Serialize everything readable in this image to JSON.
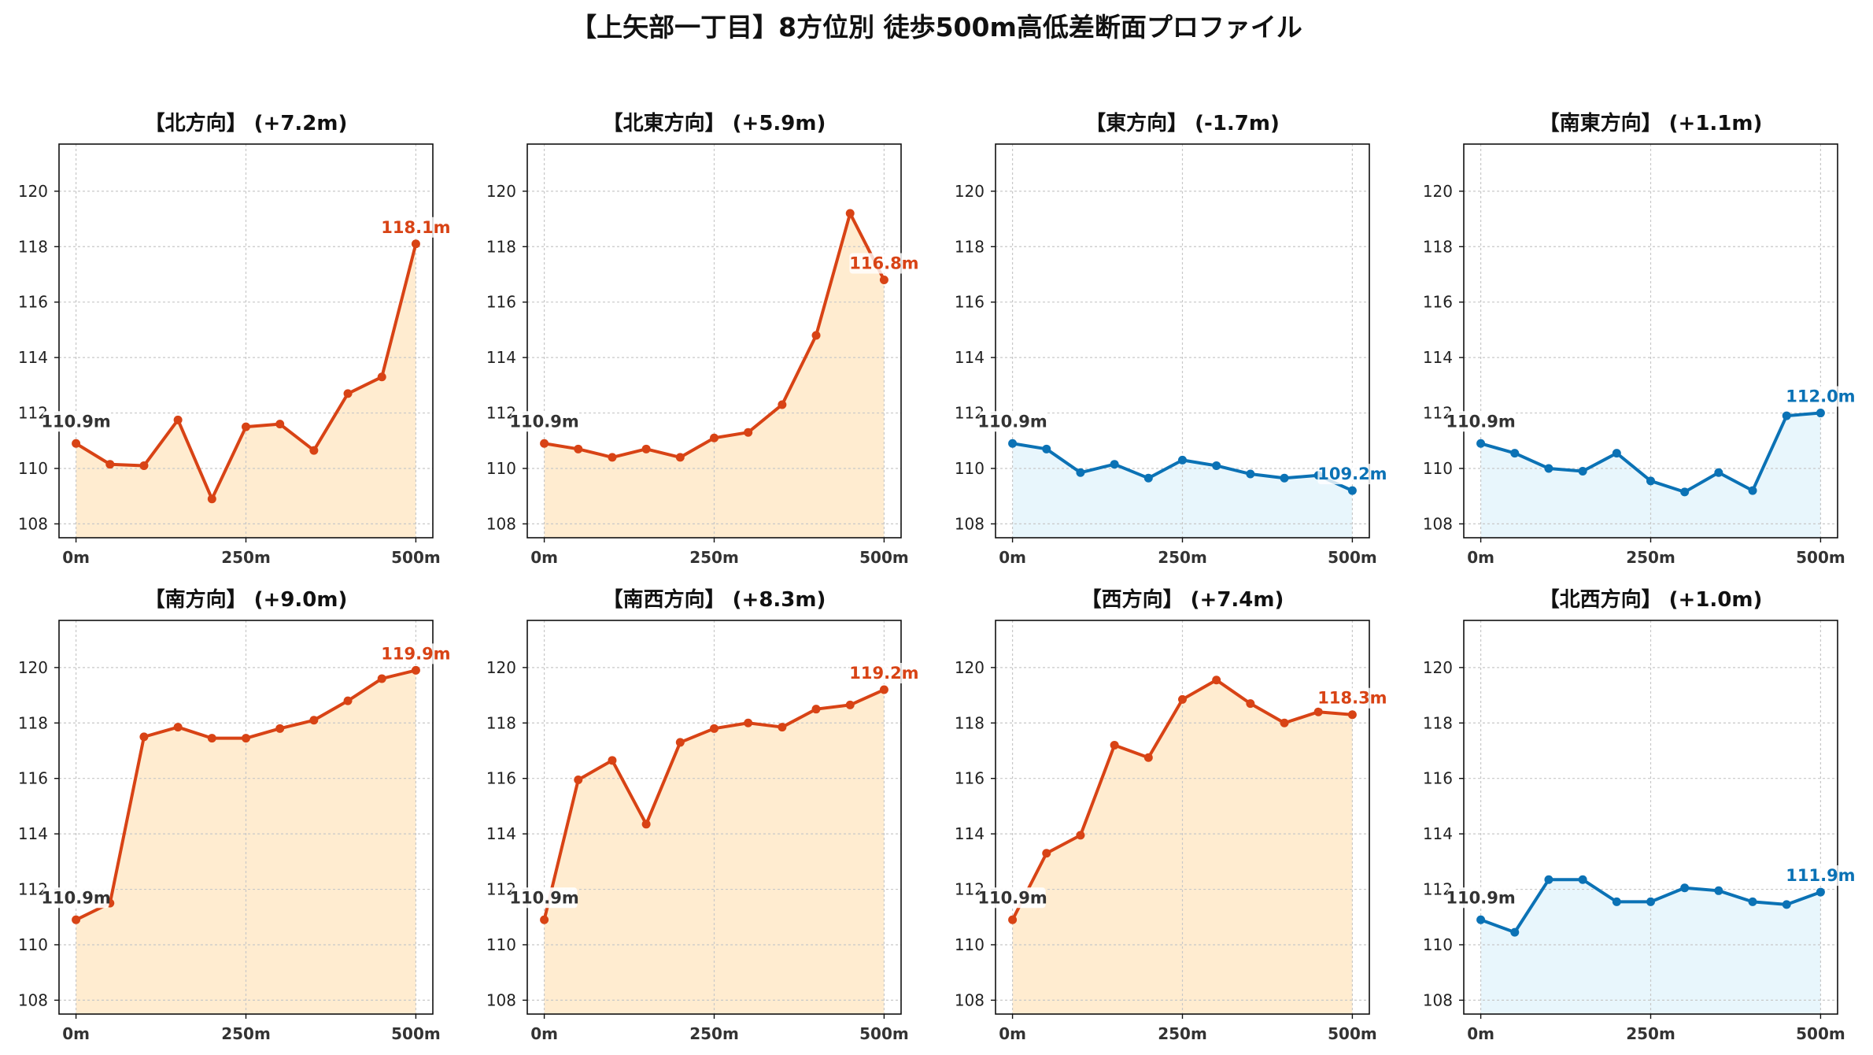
{
  "title": "【上矢部一丁目】8方位別 徒歩500m高低差断面プロファイル",
  "colors": {
    "up_line": "#d84315",
    "up_fill": "#ffecd0",
    "down_line": "#0b72b5",
    "down_fill": "#e8f6fc",
    "start_label": "#333333",
    "grid": "#c8c8c8"
  },
  "chart_data": [
    {
      "type": "line",
      "title": "【北方向】 (+7.2m)",
      "trend": "up",
      "x": [
        0,
        50,
        100,
        150,
        200,
        250,
        300,
        350,
        400,
        450,
        500
      ],
      "values": [
        110.9,
        110.15,
        110.1,
        111.75,
        108.9,
        111.5,
        111.6,
        110.65,
        112.7,
        113.3,
        118.1
      ],
      "start_label": "110.9m",
      "end_label": "118.1m"
    },
    {
      "type": "line",
      "title": "【北東方向】 (+5.9m)",
      "trend": "up",
      "x": [
        0,
        50,
        100,
        150,
        200,
        250,
        300,
        350,
        400,
        450,
        500
      ],
      "values": [
        110.9,
        110.7,
        110.4,
        110.7,
        110.4,
        111.1,
        111.3,
        112.3,
        114.8,
        119.2,
        116.8
      ],
      "start_label": "110.9m",
      "end_label": "116.8m"
    },
    {
      "type": "line",
      "title": "【東方向】 (-1.7m)",
      "trend": "down",
      "x": [
        0,
        50,
        100,
        150,
        200,
        250,
        300,
        350,
        400,
        450,
        500
      ],
      "values": [
        110.9,
        110.7,
        109.85,
        110.15,
        109.65,
        110.3,
        110.1,
        109.8,
        109.65,
        109.75,
        109.2
      ],
      "start_label": "110.9m",
      "end_label": "109.2m"
    },
    {
      "type": "line",
      "title": "【南東方向】 (+1.1m)",
      "trend": "up_small",
      "x": [
        0,
        50,
        100,
        150,
        200,
        250,
        300,
        350,
        400,
        450,
        500
      ],
      "values": [
        110.9,
        110.55,
        110.0,
        109.9,
        110.55,
        109.55,
        109.15,
        109.85,
        109.2,
        111.9,
        112.0
      ],
      "start_label": "110.9m",
      "end_label": "112.0m"
    },
    {
      "type": "line",
      "title": "【南方向】 (+9.0m)",
      "trend": "up",
      "x": [
        0,
        50,
        100,
        150,
        200,
        250,
        300,
        350,
        400,
        450,
        500
      ],
      "values": [
        110.9,
        111.5,
        117.5,
        117.85,
        117.45,
        117.45,
        117.8,
        118.1,
        118.8,
        119.6,
        119.9
      ],
      "start_label": "110.9m",
      "end_label": "119.9m"
    },
    {
      "type": "line",
      "title": "【南西方向】 (+8.3m)",
      "trend": "up",
      "x": [
        0,
        50,
        100,
        150,
        200,
        250,
        300,
        350,
        400,
        450,
        500
      ],
      "values": [
        110.9,
        115.95,
        116.65,
        114.35,
        117.3,
        117.8,
        118.0,
        117.85,
        118.5,
        118.65,
        119.2
      ],
      "start_label": "110.9m",
      "end_label": "119.2m"
    },
    {
      "type": "line",
      "title": "【西方向】 (+7.4m)",
      "trend": "up",
      "x": [
        0,
        50,
        100,
        150,
        200,
        250,
        300,
        350,
        400,
        450,
        500
      ],
      "values": [
        110.9,
        113.3,
        113.95,
        117.2,
        116.75,
        118.85,
        119.55,
        118.7,
        118.0,
        118.4,
        118.3
      ],
      "start_label": "110.9m",
      "end_label": "118.3m"
    },
    {
      "type": "line",
      "title": "【北西方向】 (+1.0m)",
      "trend": "up_small",
      "x": [
        0,
        50,
        100,
        150,
        200,
        250,
        300,
        350,
        400,
        450,
        500
      ],
      "values": [
        110.9,
        110.45,
        112.35,
        112.35,
        111.55,
        111.55,
        112.05,
        111.95,
        111.55,
        111.45,
        111.9
      ],
      "start_label": "110.9m",
      "end_label": "111.9m"
    }
  ],
  "axes": {
    "xlim": [
      -25,
      525
    ],
    "ylim": [
      107.5,
      121.7
    ],
    "yticks": [
      "108",
      "110",
      "112",
      "114",
      "116",
      "118",
      "120"
    ],
    "xticks": [
      0,
      250,
      500
    ],
    "xtick_labels": [
      "0m",
      "250m",
      "500m"
    ],
    "grid": true
  }
}
